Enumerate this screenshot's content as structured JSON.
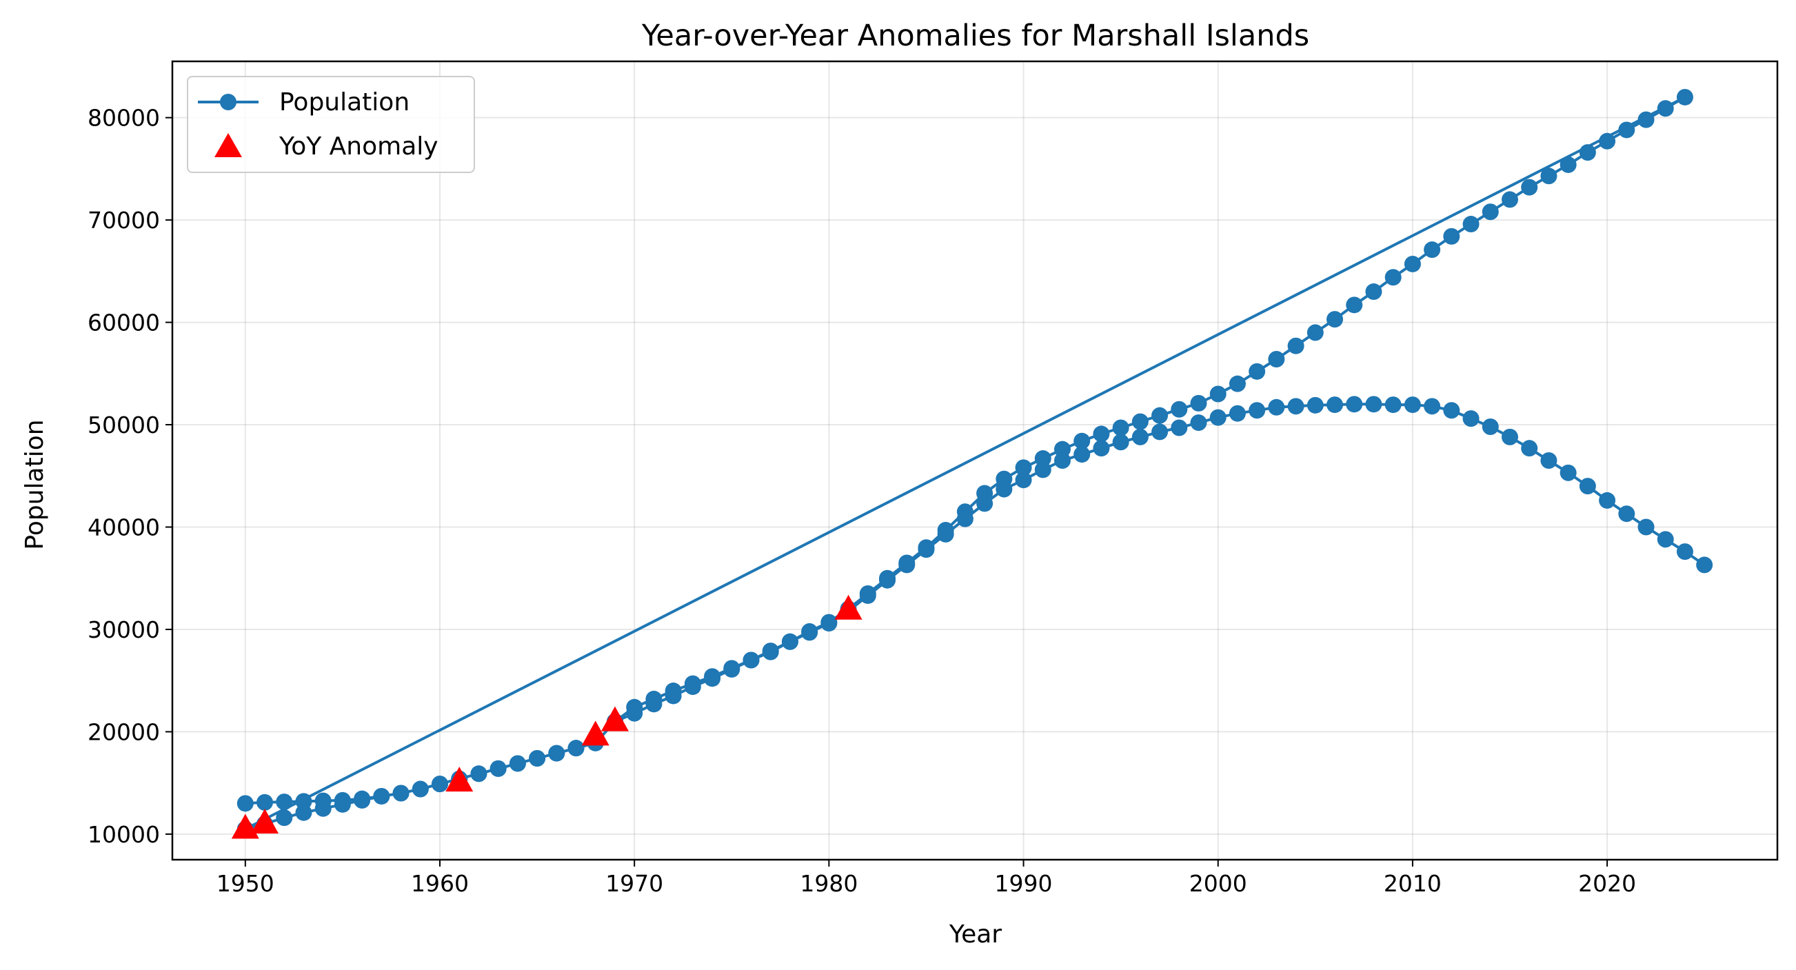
{
  "chart_data": {
    "type": "line",
    "title": "Year-over-Year Anomalies for Marshall Islands",
    "xlabel": "Year",
    "ylabel": "Population",
    "xlim": [
      1946.25,
      2028.75
    ],
    "ylim": [
      7500,
      85500
    ],
    "xticks": [
      1950,
      1960,
      1970,
      1980,
      1990,
      2000,
      2010,
      2020
    ],
    "yticks": [
      10000,
      20000,
      30000,
      40000,
      50000,
      60000,
      70000,
      80000
    ],
    "grid": true,
    "legend_position": "top-left",
    "colors": {
      "line": "#1f77b4",
      "anomaly": "#ff0000"
    },
    "series": [
      {
        "name": "Population",
        "style": "line-with-circle-markers",
        "x": [
          1950,
          1951,
          1952,
          1953,
          1954,
          1955,
          1956,
          1957,
          1958,
          1959,
          1960,
          1961,
          1962,
          1963,
          1964,
          1965,
          1966,
          1967,
          1968,
          1969,
          1970,
          1971,
          1972,
          1973,
          1974,
          1975,
          1976,
          1977,
          1978,
          1979,
          1980,
          1981,
          1982,
          1983,
          1984,
          1985,
          1986,
          1987,
          1988,
          1989,
          1990,
          1991,
          1992,
          1993,
          1994,
          1995,
          1996,
          1997,
          1998,
          1999,
          2000,
          2001,
          2002,
          2003,
          2004,
          2005,
          2006,
          2007,
          2008,
          2009,
          2010,
          2011,
          2012,
          2013,
          2014,
          2015,
          2016,
          2017,
          2018,
          2019,
          2020,
          2021,
          2022,
          2023,
          2024,
          1950,
          1951,
          1952,
          1953,
          1954,
          1955,
          1956,
          1957,
          1958,
          1959,
          1960,
          1961,
          1962,
          1963,
          1964,
          1965,
          1966,
          1967,
          1968,
          1969,
          1970,
          1971,
          1972,
          1973,
          1974,
          1975,
          1976,
          1977,
          1978,
          1979,
          1980,
          1981,
          1982,
          1983,
          1984,
          1985,
          1986,
          1987,
          1988,
          1989,
          1990,
          1991,
          1992,
          1993,
          1994,
          1995,
          1996,
          1997,
          1998,
          1999,
          2000,
          2001,
          2002,
          2003,
          2004,
          2005,
          2006,
          2007,
          2008,
          2009,
          2010,
          2011,
          2012,
          2013,
          2014,
          2015,
          2016,
          2017,
          2018,
          2019,
          2020,
          2021,
          2022,
          2023,
          2024,
          2025
        ],
        "y": [
          13000,
          13100,
          13150,
          13200,
          13250,
          13300,
          13450,
          13700,
          14000,
          14400,
          14900,
          15400,
          15900,
          16400,
          16900,
          17400,
          17900,
          18400,
          18900,
          21000,
          22400,
          23200,
          24000,
          24700,
          25400,
          26200,
          27000,
          27900,
          28800,
          29800,
          30700,
          32000,
          33500,
          35000,
          36500,
          38000,
          39700,
          41500,
          43300,
          44700,
          45800,
          46700,
          47600,
          48400,
          49100,
          49700,
          50300,
          50900,
          51500,
          52100,
          53000,
          54000,
          55200,
          56400,
          57700,
          59000,
          60300,
          61700,
          63000,
          64400,
          65700,
          67100,
          68400,
          69600,
          70800,
          72000,
          73200,
          74300,
          75400,
          76600,
          77700,
          78800,
          79800,
          80900,
          82000,
          10500,
          11000,
          11600,
          12100,
          12500,
          12900,
          13300,
          13700,
          14000,
          14400,
          14900,
          15400,
          15900,
          16400,
          16900,
          17400,
          17900,
          18400,
          18900,
          21000,
          21800,
          22700,
          23500,
          24400,
          25200,
          26100,
          27000,
          27800,
          28800,
          29700,
          30600,
          31800,
          33300,
          34800,
          36300,
          37800,
          39300,
          40800,
          42300,
          43700,
          44600,
          45600,
          46500,
          47100,
          47700,
          48300,
          48800,
          49300,
          49700,
          50200,
          50700,
          51100,
          51400,
          51700,
          51800,
          51900,
          51950,
          52000,
          52000,
          51950,
          51950,
          51800,
          51400,
          50600,
          49800,
          48800,
          47700,
          46500,
          45300,
          44000,
          42600,
          41300,
          40000,
          38800,
          37600,
          36300
        ]
      },
      {
        "name": "YoY Anomaly",
        "style": "triangle-markers",
        "x": [
          1950,
          1951,
          1961,
          1968,
          1969,
          1981
        ],
        "y": [
          10500,
          11000,
          15100,
          19600,
          21000,
          31900
        ]
      }
    ]
  }
}
